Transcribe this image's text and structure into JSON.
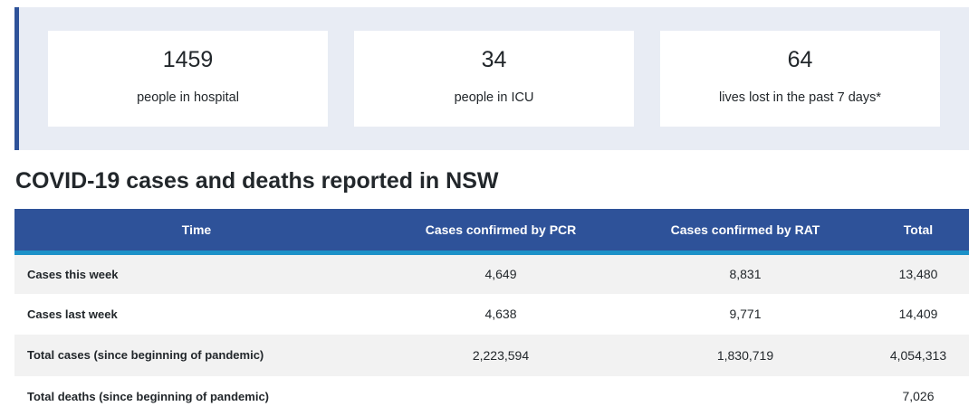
{
  "stats": [
    {
      "value": "1459",
      "label": "people in hospital"
    },
    {
      "value": "34",
      "label": "people in ICU"
    },
    {
      "value": "64",
      "label": "lives lost in the past 7 days*"
    }
  ],
  "section_title": "COVID-19 cases and deaths reported in NSW",
  "table": {
    "headers": [
      "Time",
      "Cases confirmed by PCR",
      "Cases confirmed by RAT",
      "Total"
    ],
    "rows": [
      {
        "label": "Cases this week",
        "pcr": "4,649",
        "rat": "8,831",
        "total": "13,480"
      },
      {
        "label": "Cases last week",
        "pcr": "4,638",
        "rat": "9,771",
        "total": "14,409"
      },
      {
        "label": "Total cases (since beginning of pandemic)",
        "pcr": "2,223,594",
        "rat": "1,830,719",
        "total": "4,054,313"
      },
      {
        "label": "Total deaths (since beginning of pandemic)",
        "pcr": "",
        "rat": "",
        "total": "7,026"
      }
    ]
  },
  "colors": {
    "accent": "#2e5299",
    "header_stripe": "#1c91c8",
    "panel_bg": "#e8ecf4"
  }
}
